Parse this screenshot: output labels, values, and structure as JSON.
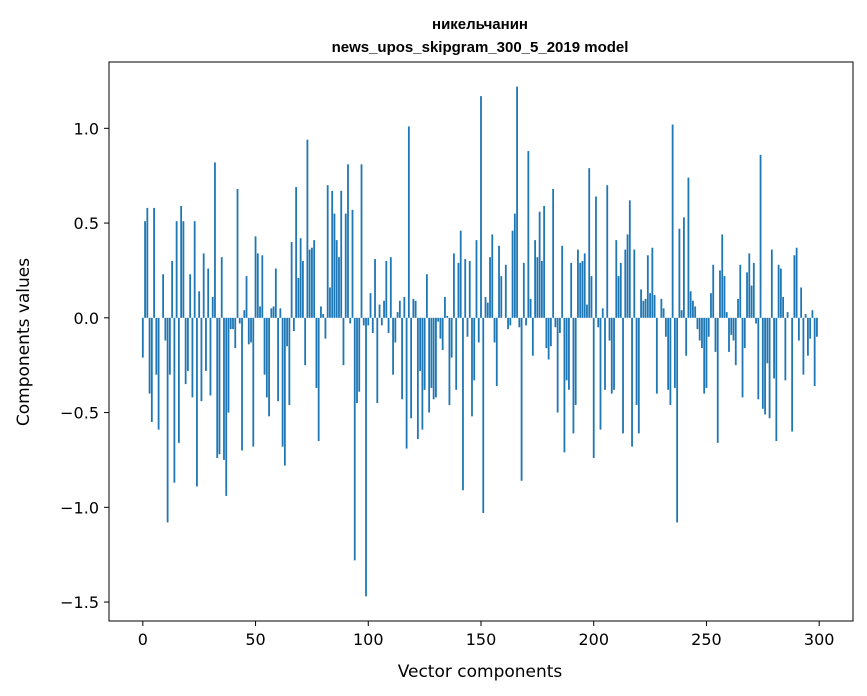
{
  "chart_data": {
    "type": "bar",
    "title": "никельчанин",
    "subtitle": "news_upos_skipgram_300_5_2019 model",
    "xlabel": "Vector components",
    "ylabel": "Components values",
    "xlim": [
      -15,
      315
    ],
    "ylim": [
      -1.6,
      1.35
    ],
    "xticks": [
      0,
      50,
      100,
      150,
      200,
      250,
      300
    ],
    "xtick_labels": [
      "0",
      "50",
      "100",
      "150",
      "200",
      "250",
      "300"
    ],
    "yticks": [
      -1.5,
      -1.0,
      -0.5,
      0.0,
      0.5,
      1.0
    ],
    "ytick_labels": [
      "−1.5",
      "−1.0",
      "−0.5",
      "0.0",
      "0.5",
      "1.0"
    ],
    "grid": false,
    "color": "#1f77b4",
    "values": [
      -0.21,
      0.51,
      0.58,
      -0.4,
      -0.55,
      0.58,
      -0.3,
      -0.59,
      0.0,
      0.23,
      -0.12,
      -1.08,
      -0.3,
      0.3,
      -0.87,
      0.51,
      -0.66,
      0.59,
      0.51,
      -0.35,
      -0.28,
      0.23,
      -0.42,
      0.51,
      -0.89,
      0.14,
      -0.44,
      0.34,
      -0.28,
      0.26,
      -0.41,
      0.11,
      0.82,
      -0.74,
      -0.72,
      0.32,
      -0.75,
      -0.94,
      -0.5,
      -0.06,
      -0.06,
      -0.16,
      0.68,
      -0.03,
      -0.7,
      0.04,
      0.22,
      -0.14,
      -0.13,
      -0.68,
      0.43,
      0.34,
      0.06,
      0.33,
      -0.3,
      -0.42,
      -0.52,
      0.05,
      0.06,
      0.26,
      -0.44,
      0.05,
      -0.68,
      -0.78,
      -0.15,
      -0.46,
      0.4,
      -0.07,
      0.69,
      0.21,
      0.42,
      0.3,
      -0.25,
      0.94,
      0.36,
      0.37,
      0.41,
      -0.37,
      -0.65,
      0.06,
      0.02,
      -0.11,
      0.7,
      0.16,
      0.67,
      0.55,
      0.41,
      0.32,
      0.67,
      -0.25,
      0.55,
      0.81,
      -0.03,
      0.57,
      -1.28,
      -0.45,
      -0.39,
      0.81,
      -0.04,
      -1.47,
      -0.04,
      0.13,
      -0.08,
      0.31,
      -0.45,
      0.07,
      -0.04,
      0.09,
      0.3,
      -0.08,
      0.32,
      -0.3,
      -0.13,
      0.03,
      0.09,
      -0.43,
      0.11,
      -0.69,
      1.01,
      -0.53,
      0.1,
      0.09,
      -0.64,
      -0.28,
      -0.59,
      -0.38,
      0.23,
      -0.5,
      -0.37,
      -0.43,
      -0.42,
      -0.02,
      -0.11,
      -0.17,
      0.11,
      0.01,
      -0.46,
      -0.21,
      0.34,
      -0.38,
      0.29,
      0.46,
      -0.91,
      0.31,
      -0.1,
      0.3,
      -0.52,
      -0.33,
      0.41,
      -0.13,
      1.17,
      -1.03,
      0.11,
      0.08,
      0.32,
      0.44,
      -0.13,
      -0.36,
      0.38,
      0.22,
      0.0,
      0.28,
      -0.06,
      -0.04,
      0.46,
      0.55,
      1.22,
      -0.05,
      -0.86,
      0.29,
      -0.04,
      0.88,
      0.1,
      -0.2,
      0.41,
      0.32,
      0.56,
      0.3,
      0.59,
      -0.16,
      -0.22,
      -0.15,
      0.68,
      -0.05,
      -0.5,
      -0.08,
      0.38,
      -0.71,
      -0.33,
      -0.38,
      0.29,
      -0.61,
      -0.46,
      0.36,
      0.29,
      0.3,
      0.34,
      0.07,
      0.79,
      0.22,
      -0.74,
      0.64,
      -0.05,
      -0.59,
      0.05,
      -0.38,
      0.7,
      -0.12,
      -0.4,
      -0.38,
      0.41,
      0.22,
      0.29,
      -0.61,
      0.36,
      0.44,
      0.62,
      -0.68,
      0.36,
      -0.46,
      -0.61,
      0.15,
      0.09,
      0.1,
      0.33,
      0.13,
      0.37,
      0.12,
      -0.4,
      0.0,
      0.1,
      0.05,
      -0.1,
      -0.38,
      -0.46,
      1.02,
      -0.37,
      -1.08,
      0.47,
      0.04,
      0.53,
      -0.2,
      0.74,
      0.14,
      0.09,
      0.06,
      -0.06,
      -0.12,
      -0.16,
      -0.4,
      -0.37,
      -0.1,
      0.13,
      0.28,
      -0.18,
      -0.66,
      0.25,
      0.44,
      0.22,
      0.03,
      -0.18,
      -0.09,
      -0.12,
      -0.25,
      0.1,
      0.28,
      -0.42,
      -0.16,
      0.24,
      0.34,
      0.17,
      0.29,
      -0.03,
      -0.43,
      0.86,
      -0.48,
      -0.51,
      -0.24,
      -0.53,
      0.36,
      -0.32,
      -0.65,
      0.28,
      0.26,
      0.11,
      -0.33,
      0.03,
      0.0,
      -0.6,
      0.33,
      0.37,
      -0.12,
      0.16,
      -0.3,
      0.02,
      -0.2,
      -0.11,
      0.04,
      -0.36,
      -0.1
    ]
  }
}
